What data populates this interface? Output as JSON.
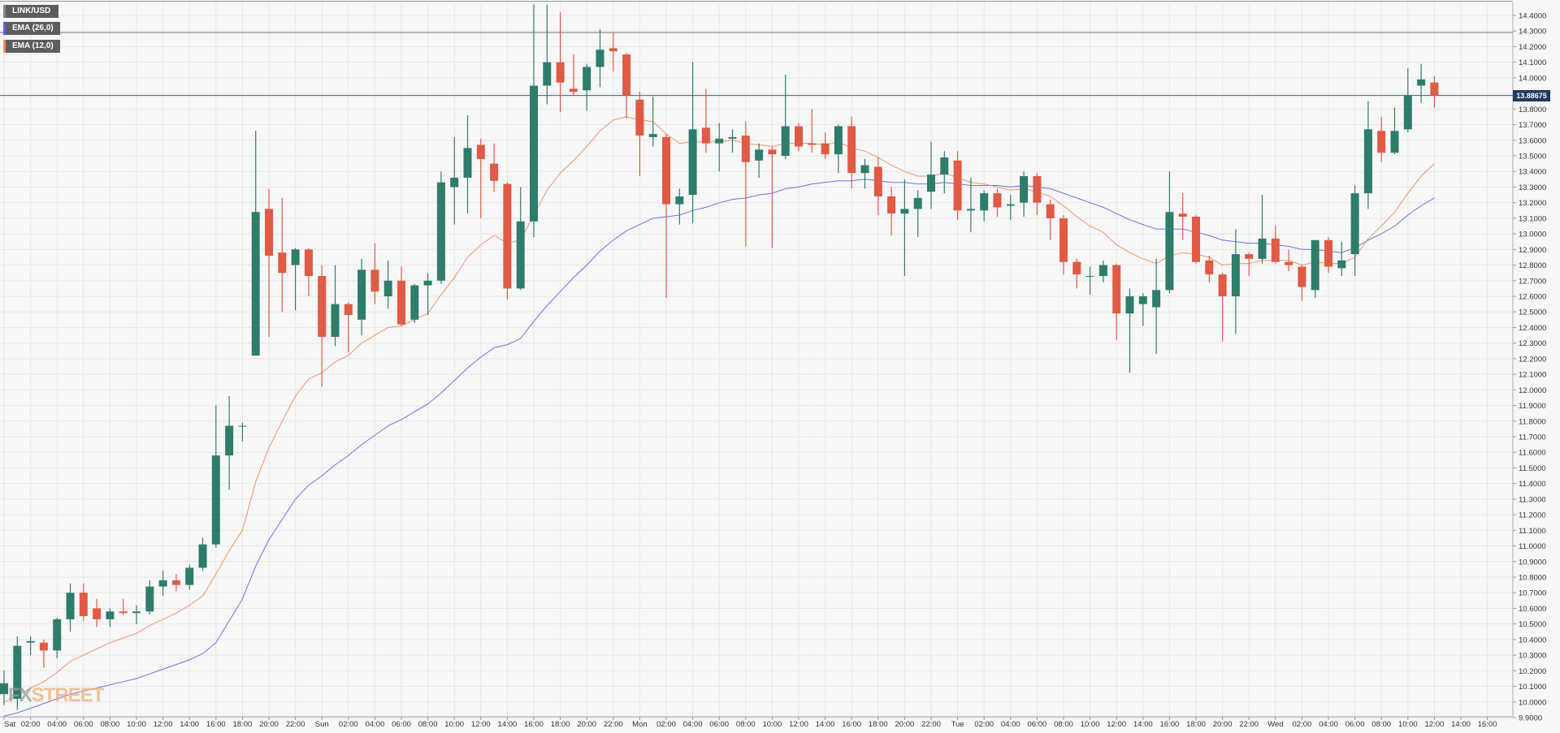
{
  "legend": {
    "pair": "LINK/USD",
    "ema_slow": "EMA (26,0)",
    "ema_fast": "EMA (12,0)"
  },
  "watermark": {
    "fx": "FX",
    "street": "STREET"
  },
  "last_price_label": "13.88675",
  "colors": {
    "bull": "#2e7d6b",
    "bear": "#e05a45",
    "ema_slow": "#5b63e8",
    "ema_fast": "#f08a5d",
    "grid": "#e6e6e6",
    "background": "#f7f7f7",
    "price_tag": "#1e3a5f"
  },
  "chart_data": {
    "type": "candlestick",
    "title": "",
    "ylim": [
      9.9,
      14.45
    ],
    "yticks": [
      "9.9000",
      "10.0000",
      "10.1000",
      "10.2000",
      "10.3000",
      "10.4000",
      "10.5000",
      "10.6000",
      "10.7000",
      "10.8000",
      "10.9000",
      "11.0000",
      "11.1000",
      "11.2000",
      "11.3000",
      "11.4000",
      "11.5000",
      "11.6000",
      "11.7000",
      "11.8000",
      "11.9000",
      "12.0000",
      "12.1000",
      "12.2000",
      "12.3000",
      "12.4000",
      "12.5000",
      "12.6000",
      "12.7000",
      "12.8000",
      "12.9000",
      "13.0000",
      "13.1000",
      "13.2000",
      "13.3000",
      "13.4000",
      "13.5000",
      "13.6000",
      "13.7000",
      "13.8000",
      "13.9000",
      "14.0000",
      "14.1000",
      "14.2000",
      "14.3000",
      "14.4000"
    ],
    "xticks": [
      {
        "i": 0,
        "label": "Sat"
      },
      {
        "i": 2,
        "label": "02:00"
      },
      {
        "i": 4,
        "label": "04:00"
      },
      {
        "i": 6,
        "label": "06:00"
      },
      {
        "i": 8,
        "label": "08:00"
      },
      {
        "i": 10,
        "label": "10:00"
      },
      {
        "i": 12,
        "label": "12:00"
      },
      {
        "i": 14,
        "label": "14:00"
      },
      {
        "i": 16,
        "label": "16:00"
      },
      {
        "i": 18,
        "label": "18:00"
      },
      {
        "i": 20,
        "label": "20:00"
      },
      {
        "i": 22,
        "label": "22:00"
      },
      {
        "i": 24,
        "label": "Sun"
      },
      {
        "i": 26,
        "label": "02:00"
      },
      {
        "i": 28,
        "label": "04:00"
      },
      {
        "i": 30,
        "label": "06:00"
      },
      {
        "i": 32,
        "label": "08:00"
      },
      {
        "i": 34,
        "label": "10:00"
      },
      {
        "i": 36,
        "label": "12:00"
      },
      {
        "i": 38,
        "label": "14:00"
      },
      {
        "i": 40,
        "label": "16:00"
      },
      {
        "i": 42,
        "label": "18:00"
      },
      {
        "i": 44,
        "label": "20:00"
      },
      {
        "i": 46,
        "label": "22:00"
      },
      {
        "i": 48,
        "label": "Mon"
      },
      {
        "i": 50,
        "label": "02:00"
      },
      {
        "i": 52,
        "label": "04:00"
      },
      {
        "i": 54,
        "label": "06:00"
      },
      {
        "i": 56,
        "label": "08:00"
      },
      {
        "i": 58,
        "label": "10:00"
      },
      {
        "i": 60,
        "label": "12:00"
      },
      {
        "i": 62,
        "label": "14:00"
      },
      {
        "i": 64,
        "label": "16:00"
      },
      {
        "i": 66,
        "label": "18:00"
      },
      {
        "i": 68,
        "label": "20:00"
      },
      {
        "i": 70,
        "label": "22:00"
      },
      {
        "i": 72,
        "label": "Tue"
      },
      {
        "i": 74,
        "label": "02:00"
      },
      {
        "i": 76,
        "label": "04:00"
      },
      {
        "i": 78,
        "label": "06:00"
      },
      {
        "i": 80,
        "label": "08:00"
      },
      {
        "i": 82,
        "label": "10:00"
      },
      {
        "i": 84,
        "label": "12:00"
      },
      {
        "i": 86,
        "label": "14:00"
      },
      {
        "i": 88,
        "label": "16:00"
      },
      {
        "i": 90,
        "label": "18:00"
      },
      {
        "i": 92,
        "label": "20:00"
      },
      {
        "i": 94,
        "label": "22:00"
      },
      {
        "i": 96,
        "label": "Wed"
      },
      {
        "i": 98,
        "label": "02:00"
      },
      {
        "i": 100,
        "label": "04:00"
      },
      {
        "i": 102,
        "label": "06:00"
      },
      {
        "i": 104,
        "label": "08:00"
      },
      {
        "i": 106,
        "label": "10:00"
      },
      {
        "i": 108,
        "label": "12:00"
      },
      {
        "i": 110,
        "label": "14:00"
      },
      {
        "i": 112,
        "label": "16:00"
      }
    ],
    "horizontal_lines": [
      14.29,
      13.88675
    ],
    "current_price": 13.88675,
    "candles": [
      {
        "o": 10.05,
        "h": 10.2,
        "l": 9.98,
        "c": 10.12
      },
      {
        "o": 10.02,
        "h": 10.42,
        "l": 9.95,
        "c": 10.36
      },
      {
        "o": 10.38,
        "h": 10.42,
        "l": 10.3,
        "c": 10.39
      },
      {
        "o": 10.38,
        "h": 10.4,
        "l": 10.22,
        "c": 10.33
      },
      {
        "o": 10.33,
        "h": 10.54,
        "l": 10.28,
        "c": 10.53
      },
      {
        "o": 10.53,
        "h": 10.76,
        "l": 10.45,
        "c": 10.7
      },
      {
        "o": 10.7,
        "h": 10.76,
        "l": 10.52,
        "c": 10.55
      },
      {
        "o": 10.6,
        "h": 10.66,
        "l": 10.48,
        "c": 10.53
      },
      {
        "o": 10.53,
        "h": 10.6,
        "l": 10.48,
        "c": 10.58
      },
      {
        "o": 10.58,
        "h": 10.66,
        "l": 10.56,
        "c": 10.57
      },
      {
        "o": 10.57,
        "h": 10.62,
        "l": 10.5,
        "c": 10.58
      },
      {
        "o": 10.58,
        "h": 10.78,
        "l": 10.56,
        "c": 10.74
      },
      {
        "o": 10.74,
        "h": 10.84,
        "l": 10.68,
        "c": 10.78
      },
      {
        "o": 10.78,
        "h": 10.82,
        "l": 10.71,
        "c": 10.75
      },
      {
        "o": 10.75,
        "h": 10.88,
        "l": 10.72,
        "c": 10.86
      },
      {
        "o": 10.86,
        "h": 11.05,
        "l": 10.84,
        "c": 11.01
      },
      {
        "o": 11.01,
        "h": 11.9,
        "l": 10.99,
        "c": 11.58
      },
      {
        "o": 11.58,
        "h": 11.96,
        "l": 11.36,
        "c": 11.77
      },
      {
        "o": 11.77,
        "h": 11.79,
        "l": 11.67,
        "c": 11.77
      },
      {
        "o": 12.22,
        "h": 13.66,
        "l": 12.22,
        "c": 13.14
      },
      {
        "o": 13.16,
        "h": 13.29,
        "l": 12.34,
        "c": 12.86
      },
      {
        "o": 12.88,
        "h": 13.23,
        "l": 12.5,
        "c": 12.75
      },
      {
        "o": 12.8,
        "h": 12.91,
        "l": 12.51,
        "c": 12.9
      },
      {
        "o": 12.9,
        "h": 12.91,
        "l": 12.6,
        "c": 12.73
      },
      {
        "o": 12.73,
        "h": 12.8,
        "l": 12.02,
        "c": 12.34
      },
      {
        "o": 12.34,
        "h": 12.8,
        "l": 12.28,
        "c": 12.55
      },
      {
        "o": 12.55,
        "h": 12.56,
        "l": 12.24,
        "c": 12.48
      },
      {
        "o": 12.45,
        "h": 12.84,
        "l": 12.35,
        "c": 12.77
      },
      {
        "o": 12.77,
        "h": 12.94,
        "l": 12.55,
        "c": 12.63
      },
      {
        "o": 12.6,
        "h": 12.83,
        "l": 12.52,
        "c": 12.7
      },
      {
        "o": 12.7,
        "h": 12.79,
        "l": 12.41,
        "c": 12.42
      },
      {
        "o": 12.45,
        "h": 12.68,
        "l": 12.43,
        "c": 12.67
      },
      {
        "o": 12.67,
        "h": 12.75,
        "l": 12.48,
        "c": 12.7
      },
      {
        "o": 12.7,
        "h": 13.4,
        "l": 12.68,
        "c": 13.33
      },
      {
        "o": 13.3,
        "h": 13.62,
        "l": 13.06,
        "c": 13.36
      },
      {
        "o": 13.36,
        "h": 13.76,
        "l": 13.13,
        "c": 13.55
      },
      {
        "o": 13.57,
        "h": 13.61,
        "l": 13.1,
        "c": 13.48
      },
      {
        "o": 13.45,
        "h": 13.58,
        "l": 13.27,
        "c": 13.34
      },
      {
        "o": 13.32,
        "h": 13.33,
        "l": 12.58,
        "c": 12.65
      },
      {
        "o": 12.65,
        "h": 13.3,
        "l": 12.64,
        "c": 13.08
      },
      {
        "o": 13.08,
        "h": 14.47,
        "l": 12.98,
        "c": 13.95
      },
      {
        "o": 13.95,
        "h": 14.47,
        "l": 13.83,
        "c": 14.1
      },
      {
        "o": 14.1,
        "h": 14.42,
        "l": 13.78,
        "c": 13.97
      },
      {
        "o": 13.93,
        "h": 14.15,
        "l": 13.89,
        "c": 13.91
      },
      {
        "o": 13.92,
        "h": 14.09,
        "l": 13.79,
        "c": 14.07
      },
      {
        "o": 14.07,
        "h": 14.31,
        "l": 13.94,
        "c": 14.18
      },
      {
        "o": 14.19,
        "h": 14.29,
        "l": 14.04,
        "c": 14.17
      },
      {
        "o": 14.15,
        "h": 14.16,
        "l": 13.74,
        "c": 13.89
      },
      {
        "o": 13.86,
        "h": 13.91,
        "l": 13.37,
        "c": 13.63
      },
      {
        "o": 13.62,
        "h": 13.88,
        "l": 13.56,
        "c": 13.64
      },
      {
        "o": 13.62,
        "h": 13.64,
        "l": 12.59,
        "c": 13.19
      },
      {
        "o": 13.19,
        "h": 13.29,
        "l": 13.06,
        "c": 13.24
      },
      {
        "o": 13.25,
        "h": 14.1,
        "l": 13.07,
        "c": 13.67
      },
      {
        "o": 13.68,
        "h": 13.93,
        "l": 13.52,
        "c": 13.58
      },
      {
        "o": 13.58,
        "h": 13.71,
        "l": 13.4,
        "c": 13.61
      },
      {
        "o": 13.61,
        "h": 13.67,
        "l": 13.52,
        "c": 13.62
      },
      {
        "o": 13.63,
        "h": 13.72,
        "l": 12.92,
        "c": 13.46
      },
      {
        "o": 13.47,
        "h": 13.58,
        "l": 13.36,
        "c": 13.54
      },
      {
        "o": 13.54,
        "h": 13.56,
        "l": 12.91,
        "c": 13.51
      },
      {
        "o": 13.5,
        "h": 14.02,
        "l": 13.48,
        "c": 13.69
      },
      {
        "o": 13.69,
        "h": 13.71,
        "l": 13.53,
        "c": 13.56
      },
      {
        "o": 13.58,
        "h": 13.8,
        "l": 13.52,
        "c": 13.57
      },
      {
        "o": 13.58,
        "h": 13.65,
        "l": 13.48,
        "c": 13.51
      },
      {
        "o": 13.51,
        "h": 13.7,
        "l": 13.39,
        "c": 13.69
      },
      {
        "o": 13.69,
        "h": 13.75,
        "l": 13.29,
        "c": 13.39
      },
      {
        "o": 13.39,
        "h": 13.48,
        "l": 13.29,
        "c": 13.44
      },
      {
        "o": 13.43,
        "h": 13.49,
        "l": 13.12,
        "c": 13.24
      },
      {
        "o": 13.24,
        "h": 13.3,
        "l": 12.99,
        "c": 13.13
      },
      {
        "o": 13.13,
        "h": 13.35,
        "l": 12.73,
        "c": 13.16
      },
      {
        "o": 13.16,
        "h": 13.28,
        "l": 12.98,
        "c": 13.23
      },
      {
        "o": 13.27,
        "h": 13.59,
        "l": 13.16,
        "c": 13.38
      },
      {
        "o": 13.38,
        "h": 13.53,
        "l": 13.26,
        "c": 13.49
      },
      {
        "o": 13.47,
        "h": 13.53,
        "l": 13.09,
        "c": 13.15
      },
      {
        "o": 13.15,
        "h": 13.36,
        "l": 13.01,
        "c": 13.16
      },
      {
        "o": 13.15,
        "h": 13.28,
        "l": 13.08,
        "c": 13.26
      },
      {
        "o": 13.26,
        "h": 13.29,
        "l": 13.11,
        "c": 13.17
      },
      {
        "o": 13.18,
        "h": 13.25,
        "l": 13.09,
        "c": 13.19
      },
      {
        "o": 13.2,
        "h": 13.4,
        "l": 13.11,
        "c": 13.37
      },
      {
        "o": 13.37,
        "h": 13.39,
        "l": 13.12,
        "c": 13.2
      },
      {
        "o": 13.19,
        "h": 13.22,
        "l": 12.96,
        "c": 13.1
      },
      {
        "o": 13.1,
        "h": 13.12,
        "l": 12.74,
        "c": 12.82
      },
      {
        "o": 12.82,
        "h": 12.84,
        "l": 12.65,
        "c": 12.74
      },
      {
        "o": 12.73,
        "h": 12.79,
        "l": 12.61,
        "c": 12.73
      },
      {
        "o": 12.73,
        "h": 12.83,
        "l": 12.69,
        "c": 12.8
      },
      {
        "o": 12.8,
        "h": 12.81,
        "l": 12.32,
        "c": 12.49
      },
      {
        "o": 12.49,
        "h": 12.65,
        "l": 12.11,
        "c": 12.6
      },
      {
        "o": 12.55,
        "h": 12.62,
        "l": 12.41,
        "c": 12.6
      },
      {
        "o": 12.53,
        "h": 12.84,
        "l": 12.23,
        "c": 12.64
      },
      {
        "o": 12.64,
        "h": 13.4,
        "l": 12.62,
        "c": 13.14
      },
      {
        "o": 13.13,
        "h": 13.26,
        "l": 12.96,
        "c": 13.11
      },
      {
        "o": 13.11,
        "h": 13.12,
        "l": 12.81,
        "c": 12.82
      },
      {
        "o": 12.83,
        "h": 12.86,
        "l": 12.69,
        "c": 12.74
      },
      {
        "o": 12.74,
        "h": 12.75,
        "l": 12.31,
        "c": 12.6
      },
      {
        "o": 12.6,
        "h": 13.03,
        "l": 12.36,
        "c": 12.87
      },
      {
        "o": 12.87,
        "h": 12.88,
        "l": 12.73,
        "c": 12.84
      },
      {
        "o": 12.84,
        "h": 13.25,
        "l": 12.81,
        "c": 12.97
      },
      {
        "o": 12.97,
        "h": 13.05,
        "l": 12.81,
        "c": 12.82
      },
      {
        "o": 12.82,
        "h": 12.9,
        "l": 12.76,
        "c": 12.8
      },
      {
        "o": 12.79,
        "h": 12.8,
        "l": 12.57,
        "c": 12.66
      },
      {
        "o": 12.64,
        "h": 12.96,
        "l": 12.59,
        "c": 12.96
      },
      {
        "o": 12.96,
        "h": 12.98,
        "l": 12.75,
        "c": 12.79
      },
      {
        "o": 12.78,
        "h": 12.95,
        "l": 12.73,
        "c": 12.83
      },
      {
        "o": 12.87,
        "h": 13.31,
        "l": 12.73,
        "c": 13.26
      },
      {
        "o": 13.26,
        "h": 13.85,
        "l": 13.16,
        "c": 13.67
      },
      {
        "o": 13.66,
        "h": 13.75,
        "l": 13.46,
        "c": 13.52
      },
      {
        "o": 13.52,
        "h": 13.81,
        "l": 13.51,
        "c": 13.66
      },
      {
        "o": 13.67,
        "h": 14.06,
        "l": 13.65,
        "c": 13.89
      },
      {
        "o": 13.95,
        "h": 14.09,
        "l": 13.84,
        "c": 13.99
      },
      {
        "o": 13.97,
        "h": 14.01,
        "l": 13.81,
        "c": 13.89
      }
    ],
    "series": [
      {
        "name": "EMA (26,0)",
        "values": [
          9.91,
          9.93,
          9.96,
          9.99,
          10.02,
          10.05,
          10.07,
          10.09,
          10.11,
          10.13,
          10.15,
          10.18,
          10.21,
          10.24,
          10.27,
          10.31,
          10.38,
          10.52,
          10.66,
          10.87,
          11.04,
          11.17,
          11.3,
          11.39,
          11.45,
          11.52,
          11.58,
          11.65,
          11.71,
          11.77,
          11.81,
          11.86,
          11.91,
          11.98,
          12.06,
          12.14,
          12.21,
          12.27,
          12.29,
          12.33,
          12.44,
          12.54,
          12.63,
          12.72,
          12.8,
          12.89,
          12.96,
          13.02,
          13.06,
          13.1,
          13.11,
          13.12,
          13.15,
          13.17,
          13.2,
          13.22,
          13.23,
          13.25,
          13.26,
          13.29,
          13.3,
          13.32,
          13.33,
          13.34,
          13.34,
          13.35,
          13.34,
          13.33,
          13.33,
          13.32,
          13.32,
          13.33,
          13.32,
          13.31,
          13.31,
          13.31,
          13.3,
          13.31,
          13.3,
          13.29,
          13.26,
          13.23,
          13.2,
          13.17,
          13.13,
          13.09,
          13.06,
          13.03,
          13.03,
          13.03,
          13.01,
          12.99,
          12.96,
          12.95,
          12.94,
          12.94,
          12.93,
          12.92,
          12.9,
          12.9,
          12.89,
          12.88,
          12.91,
          12.96,
          13.0,
          13.05,
          13.12,
          13.18,
          13.23
        ]
      },
      {
        "name": "EMA (12,0)",
        "values": [
          10.0,
          10.04,
          10.09,
          10.13,
          10.19,
          10.26,
          10.3,
          10.34,
          10.38,
          10.41,
          10.44,
          10.49,
          10.53,
          10.57,
          10.62,
          10.68,
          10.82,
          10.97,
          11.1,
          11.41,
          11.63,
          11.8,
          11.96,
          12.07,
          12.11,
          12.18,
          12.22,
          12.3,
          12.35,
          12.4,
          12.41,
          12.45,
          12.49,
          12.61,
          12.72,
          12.85,
          12.93,
          12.99,
          12.94,
          12.96,
          13.12,
          13.28,
          13.39,
          13.47,
          13.56,
          13.66,
          13.73,
          13.75,
          13.73,
          13.72,
          13.64,
          13.58,
          13.59,
          13.59,
          13.59,
          13.6,
          13.58,
          13.57,
          13.56,
          13.58,
          13.58,
          13.58,
          13.57,
          13.59,
          13.55,
          13.53,
          13.49,
          13.44,
          13.4,
          13.37,
          13.37,
          13.39,
          13.36,
          13.33,
          13.32,
          13.3,
          13.28,
          13.29,
          13.27,
          13.24,
          13.18,
          13.11,
          13.05,
          13.01,
          12.93,
          12.88,
          12.84,
          12.81,
          12.86,
          12.88,
          12.87,
          12.85,
          12.8,
          12.81,
          12.81,
          12.83,
          12.83,
          12.83,
          12.8,
          12.82,
          12.81,
          12.81,
          12.85,
          12.97,
          13.05,
          13.14,
          13.26,
          13.37,
          13.45
        ]
      }
    ]
  }
}
